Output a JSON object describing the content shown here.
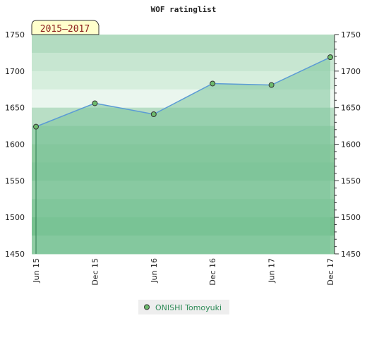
{
  "chart_data": {
    "type": "area",
    "title": "WOF ratinglist",
    "period_label": "2015–2017",
    "xlabel": "",
    "ylabel": "",
    "ylim": [
      1450,
      1750
    ],
    "yticks": [
      1450,
      1500,
      1550,
      1600,
      1650,
      1700,
      1750
    ],
    "categories": [
      "Jun 15",
      "Dec 15",
      "Jun 16",
      "Dec 16",
      "Jun 17",
      "Dec 17"
    ],
    "series": [
      {
        "name": "ONISHI Tomoyuki",
        "values": [
          1624,
          1656,
          1641,
          1683,
          1681,
          1719
        ]
      }
    ],
    "grid": true,
    "legend": "bottom-center",
    "colors": {
      "line": "#5b9bd5",
      "marker": "#6dbb6d",
      "area": "#7cc49a",
      "legend_text": "#2e8b57",
      "period_fill": "#ffffcc",
      "period_text": "#8b1a1a"
    }
  }
}
